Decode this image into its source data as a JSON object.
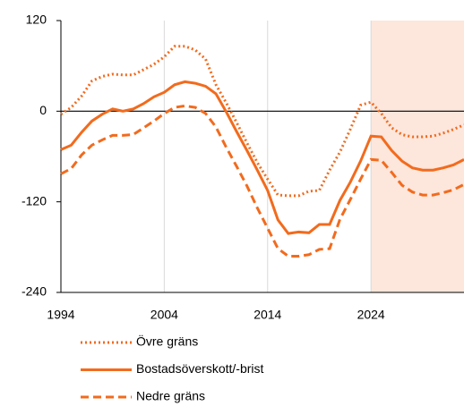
{
  "chart_data": {
    "type": "line",
    "x": [
      1994,
      1995,
      1996,
      1997,
      1998,
      1999,
      2000,
      2001,
      2002,
      2003,
      2004,
      2005,
      2006,
      2007,
      2008,
      2009,
      2010,
      2011,
      2012,
      2013,
      2014,
      2015,
      2016,
      2017,
      2018,
      2019,
      2020,
      2021,
      2022,
      2023,
      2024,
      2025,
      2026,
      2027,
      2028,
      2029,
      2030,
      2031,
      2032,
      2033
    ],
    "series": [
      {
        "name": "Övre gräns",
        "color": "#f26b1d",
        "dash": "dotted",
        "values": [
          -4,
          5,
          20,
          40,
          46,
          49,
          48,
          48,
          55,
          62,
          72,
          86,
          86,
          81,
          69,
          35,
          11,
          -15,
          -42,
          -68,
          -90,
          -111,
          -112,
          -112,
          -106,
          -105,
          -78,
          -54,
          -24,
          8,
          12,
          -3,
          -22,
          -31,
          -34,
          -34,
          -33,
          -29,
          -24,
          -18
        ]
      },
      {
        "name": "Bostadsöverskott/-brist",
        "color": "#f26b1d",
        "dash": "solid",
        "values": [
          -51,
          -45,
          -28,
          -13,
          -4,
          3,
          0,
          3,
          10,
          19,
          25,
          35,
          39,
          37,
          33,
          23,
          -1,
          -27,
          -52,
          -78,
          -105,
          -144,
          -162,
          -160,
          -161,
          -150,
          -150,
          -118,
          -94,
          -66,
          -33,
          -34,
          -52,
          -66,
          -75,
          -78,
          -78,
          -75,
          -71,
          -64
        ]
      },
      {
        "name": "Nedre gräns",
        "color": "#f26b1d",
        "dash": "dashed",
        "values": [
          -83,
          -76,
          -58,
          -45,
          -38,
          -32,
          -32,
          -31,
          -22,
          -13,
          -3,
          5,
          7,
          5,
          -3,
          -21,
          -48,
          -73,
          -99,
          -128,
          -155,
          -182,
          -192,
          -192,
          -190,
          -183,
          -182,
          -143,
          -117,
          -90,
          -64,
          -65,
          -81,
          -98,
          -107,
          -111,
          -111,
          -108,
          -104,
          -97
        ]
      }
    ],
    "xlim": [
      1994,
      2033
    ],
    "xticks": [
      1994,
      2004,
      2014,
      2024
    ],
    "ylim": [
      -240,
      120
    ],
    "yticks": [
      -240,
      -120,
      0,
      120
    ],
    "forecast_start": 2024,
    "forecast_color": "#fde6dc",
    "grid": true
  }
}
